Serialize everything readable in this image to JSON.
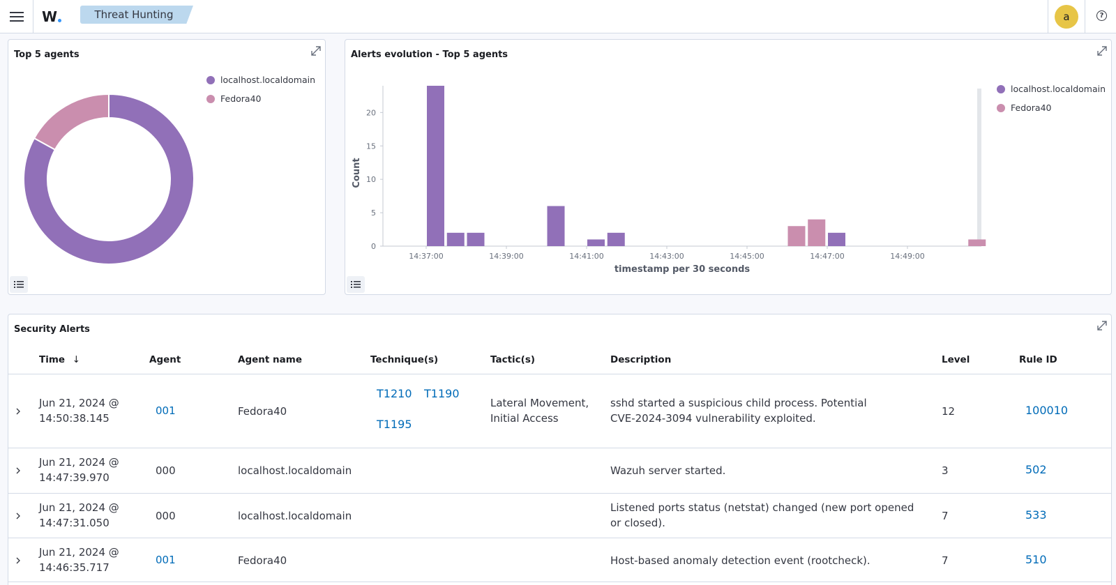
{
  "header": {
    "breadcrumb": "Threat Hunting",
    "logo_text": "W",
    "avatar_initial": "a",
    "help_glyph": "?",
    "accent_color": "#bcd8ee"
  },
  "top_agents_panel": {
    "title": "Top 5 agents"
  },
  "evolution_panel": {
    "title": "Alerts evolution - Top 5 agents"
  },
  "alerts_table": {
    "title": "Security Alerts",
    "columns": {
      "time": "Time",
      "agent": "Agent",
      "agent_name": "Agent name",
      "techniques": "Technique(s)",
      "tactics": "Tactic(s)",
      "description": "Description",
      "level": "Level",
      "rule_id": "Rule ID"
    },
    "sort_arrow": "↓",
    "rows": [
      {
        "time_date": "Jun 21, 2024 @",
        "time_clock": "14:50:38.145",
        "agent": "001",
        "agent_name": "Fedora40",
        "technique_1": "T1210",
        "technique_2": "T1190",
        "technique_3": "T1195",
        "tactic_line1": "Lateral Movement,",
        "tactic_line2": "Initial Access",
        "desc_line1": "sshd started a suspicious child process. Potential",
        "desc_line2": "CVE-2024-3094 vulnerability exploited.",
        "level": "12",
        "rule_id": "100010"
      },
      {
        "time_date": "Jun 21, 2024 @",
        "time_clock": "14:47:39.970",
        "agent": "000",
        "agent_name": "localhost.localdomain",
        "desc_line1": "Wazuh server started.",
        "level": "3",
        "rule_id": "502"
      },
      {
        "time_date": "Jun 21, 2024 @",
        "time_clock": "14:47:31.050",
        "agent": "000",
        "agent_name": "localhost.localdomain",
        "desc_line1": "Listened ports status (netstat) changed (new port opened",
        "desc_line2": "or closed).",
        "level": "7",
        "rule_id": "533"
      },
      {
        "time_date": "Jun 21, 2024 @",
        "time_clock": "14:46:35.717",
        "agent": "001",
        "agent_name": "Fedora40",
        "desc_line1": "Host-based anomaly detection event (rootcheck).",
        "level": "7",
        "rule_id": "510"
      }
    ]
  },
  "chart_data": [
    {
      "type": "pie",
      "title": "Top 5 agents",
      "donut": true,
      "categories": [
        "localhost.localdomain",
        "Fedora40"
      ],
      "values": [
        83,
        17
      ],
      "colors": [
        "#9170b8",
        "#ca8eae"
      ],
      "legend": "top-right"
    },
    {
      "type": "bar",
      "title": "Alerts evolution - Top 5 agents",
      "xlabel": "timestamp per 30 seconds",
      "ylabel": "Count",
      "ylim": [
        0,
        24
      ],
      "yticks": [
        "0",
        "5",
        "10",
        "15",
        "20"
      ],
      "xticks": [
        "14:37:00",
        "14:39:00",
        "14:41:00",
        "14:43:00",
        "14:45:00",
        "14:47:00",
        "14:49:00"
      ],
      "legend": "top-right",
      "series": [
        {
          "name": "localhost.localdomain",
          "color": "#9170b8",
          "points": [
            {
              "t": "14:37:00",
              "value": 24
            },
            {
              "t": "14:37:30",
              "value": 2
            },
            {
              "t": "14:38:00",
              "value": 2
            },
            {
              "t": "14:40:00",
              "value": 6
            },
            {
              "t": "14:41:00",
              "value": 1
            },
            {
              "t": "14:41:30",
              "value": 2
            },
            {
              "t": "14:47:00",
              "value": 2
            }
          ]
        },
        {
          "name": "Fedora40",
          "color": "#ca8eae",
          "points": [
            {
              "t": "14:46:00",
              "value": 3
            },
            {
              "t": "14:46:30",
              "value": 4
            },
            {
              "t": "14:50:30",
              "value": 1
            }
          ]
        }
      ]
    }
  ]
}
